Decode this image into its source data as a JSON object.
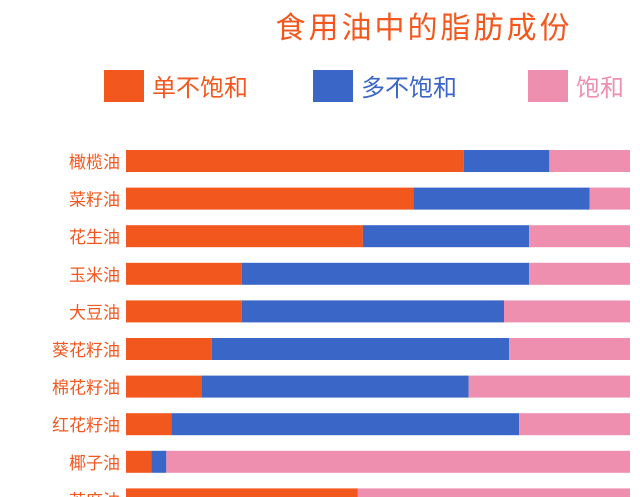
{
  "chart_data": {
    "type": "bar",
    "orientation": "horizontal",
    "stacked": true,
    "title": "食用油中的脂肪成份",
    "categories": [
      "橄榄油",
      "菜籽油",
      "花生油",
      "玉米油",
      "大豆油",
      "葵花籽油",
      "棉花籽油",
      "红花籽油",
      "椰子油",
      "芝麻油"
    ],
    "series": [
      {
        "name": "单不饱和",
        "color": "#F2581E",
        "values": [
          67,
          57,
          47,
          23,
          23,
          17,
          15,
          9,
          5,
          46
        ]
      },
      {
        "name": "多不饱和",
        "color": "#3A66C8",
        "values": [
          17,
          35,
          33,
          57,
          52,
          59,
          53,
          69,
          3,
          0
        ]
      },
      {
        "name": "饱和",
        "color": "#EF8FB0",
        "values": [
          16,
          8,
          20,
          20,
          25,
          24,
          32,
          22,
          92,
          54
        ]
      }
    ],
    "xlim": [
      0,
      100
    ],
    "legend_position": "top",
    "grid": false
  }
}
